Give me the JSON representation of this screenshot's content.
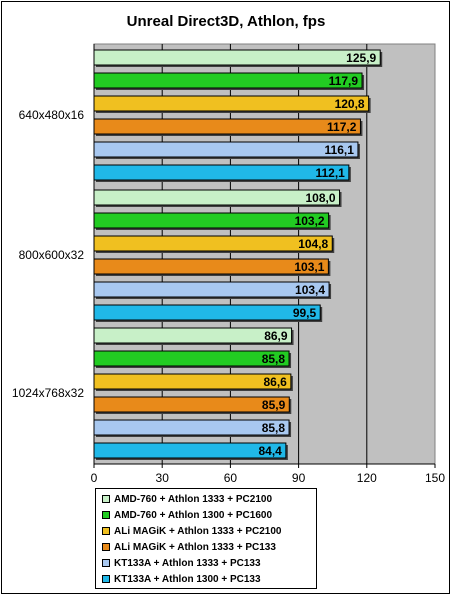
{
  "chart_data": {
    "type": "bar",
    "orientation": "horizontal",
    "title": "Unreal Direct3D, Athlon, fps",
    "categories": [
      "640x480x16",
      "800x600x32",
      "1024x768x32"
    ],
    "series": [
      {
        "name": "AMD-760 + Athlon 1333 + PC2100",
        "color": "#c8f0c8",
        "values": [
          125.9,
          108.0,
          86.9
        ],
        "labels": [
          "125,9",
          "108,0",
          "86,9"
        ]
      },
      {
        "name": "AMD-760 + Athlon 1300 + PC1600",
        "color": "#22cc22",
        "values": [
          117.9,
          103.2,
          85.8
        ],
        "labels": [
          "117,9",
          "103,2",
          "85,8"
        ]
      },
      {
        "name": "ALi MAGiK + Athlon 1333 + PC2100",
        "color": "#f0c020",
        "values": [
          120.8,
          104.8,
          86.6
        ],
        "labels": [
          "120,8",
          "104,8",
          "86,6"
        ]
      },
      {
        "name": "ALi MAGiK + Athlon 1333 + PC133",
        "color": "#e88a1a",
        "values": [
          117.2,
          103.1,
          85.9
        ],
        "labels": [
          "117,2",
          "103,1",
          "85,9"
        ]
      },
      {
        "name": "KT133A + Athlon 1333 + PC133",
        "color": "#a8c8f0",
        "values": [
          116.1,
          103.4,
          85.8
        ],
        "labels": [
          "116,1",
          "103,4",
          "85,8"
        ]
      },
      {
        "name": "KT133A + Athlon 1300 + PC133",
        "color": "#20b8e8",
        "values": [
          112.1,
          99.5,
          84.4
        ],
        "labels": [
          "112,1",
          "99,5",
          "84,4"
        ]
      }
    ],
    "x_ticks": [
      "0",
      "30",
      "60",
      "90",
      "120",
      "150"
    ],
    "xlim": [
      0,
      150
    ],
    "grid": true,
    "plot_background": "#c0c0c0",
    "legend_position": "bottom"
  }
}
